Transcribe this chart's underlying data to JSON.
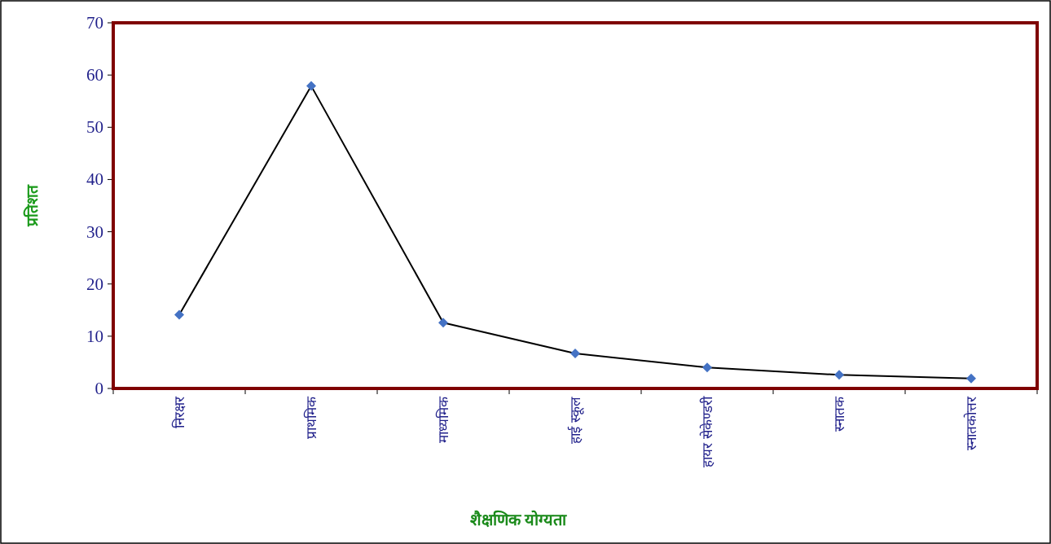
{
  "chart_data": {
    "type": "line",
    "xlabel": "शैक्षणिक योग्यता",
    "ylabel": "प्रतिशत",
    "categories": [
      "निरक्षर",
      "प्राथमिक",
      "माध्यमिक",
      "हाई स्कूल",
      "हायर सेकेण्डरी",
      "स्नातक",
      "स्नातकोत्तर"
    ],
    "series": [
      {
        "color": "#4472c4",
        "values": [
          14.1,
          57.9,
          12.6,
          6.7,
          4.0,
          2.6,
          1.9
        ]
      }
    ],
    "ylim": [
      0,
      70
    ],
    "yticks": [
      0,
      10,
      20,
      30,
      40,
      50,
      60,
      70
    ],
    "marker": "diamond",
    "line_style": "solid"
  }
}
